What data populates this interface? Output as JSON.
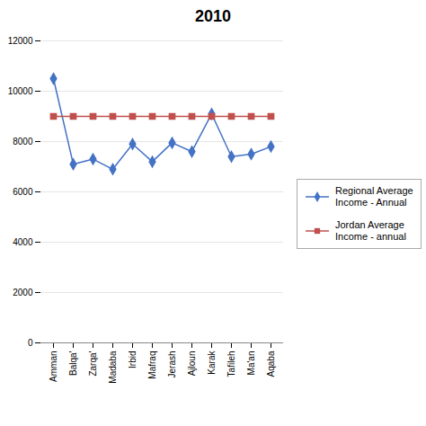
{
  "chart_data": {
    "type": "line",
    "title": "2010",
    "categories": [
      "Amman",
      "Balqa'",
      "Zarqa'",
      "Madaba",
      "Irbid",
      "Mafraq",
      "Jerash",
      "Ajloun",
      "Karak",
      "Tafileh",
      "Ma'an",
      "Aqaba"
    ],
    "series": [
      {
        "name": "Regional Average\nIncome - Annual",
        "color": "#4472C4",
        "marker": "diamond",
        "values": [
          10500,
          7100,
          7300,
          6900,
          7900,
          7200,
          7950,
          7600,
          9100,
          7400,
          7500,
          7800
        ]
      },
      {
        "name": "Jordan Average\nIncome - annual",
        "color": "#C0504D",
        "marker": "square",
        "values": [
          9000,
          9000,
          9000,
          9000,
          9000,
          9000,
          9000,
          9000,
          9000,
          9000,
          9000,
          9000
        ]
      }
    ],
    "ylim": [
      0,
      12000
    ],
    "yticks": [
      0,
      2000,
      4000,
      6000,
      8000,
      10000,
      12000
    ],
    "grid": true,
    "legend": "right"
  }
}
